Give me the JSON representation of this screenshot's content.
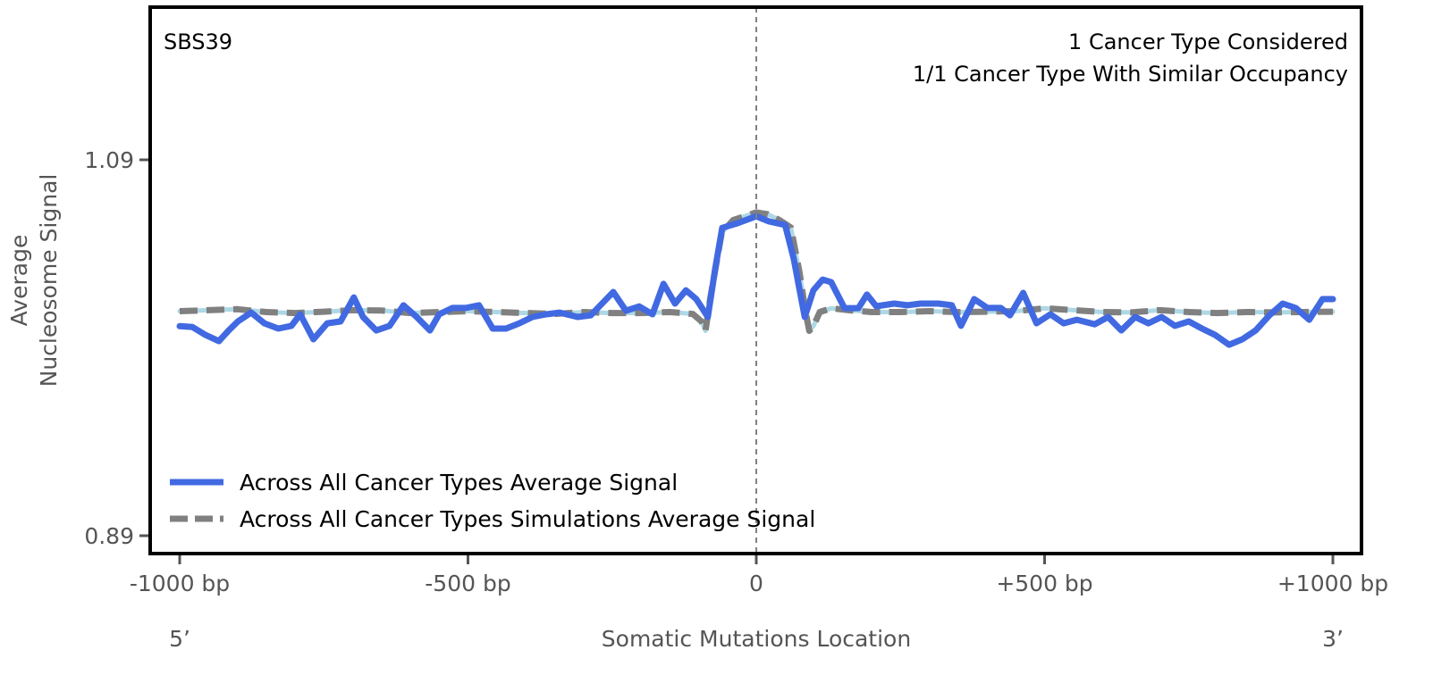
{
  "chart_data": {
    "type": "line",
    "signature_label": "SBS39",
    "annotations": [
      "1 Cancer Type Considered",
      "1/1 Cancer Type With Similar Occupancy"
    ],
    "xlabel": "Somatic Mutations Location",
    "ylabel_lines": [
      "Average",
      "Nucleosome Signal"
    ],
    "x_end_labels": {
      "left": "5’",
      "right": "3’"
    },
    "xlim": [
      -1000,
      1000
    ],
    "ylim": [
      0.875,
      1.17
    ],
    "xticks": [
      {
        "value": -1000,
        "label": "-1000 bp"
      },
      {
        "value": -500,
        "label": "-500 bp"
      },
      {
        "value": 0,
        "label": "0"
      },
      {
        "value": 500,
        "label": "+500 bp"
      },
      {
        "value": 1000,
        "label": "+1000 bp"
      }
    ],
    "yticks": [
      {
        "value": 1.09,
        "label": "1.09"
      },
      {
        "value": 0.89,
        "label": "0.89"
      }
    ],
    "center_line": {
      "x": 0,
      "color": "#808080",
      "style": "dashed"
    },
    "legend": {
      "placement": "lower-left",
      "entries": [
        {
          "label": "Across All Cancer Types Average Signal",
          "color": "#4169e1",
          "style": "solid"
        },
        {
          "label": "Across All Cancer Types Simulations Average Signal",
          "color": "#808080",
          "style": "dashed"
        }
      ]
    },
    "series": [
      {
        "name": "Across All Cancer Types Simulations Average Signal (individual)",
        "color": "#add8e6",
        "style": "solid",
        "x": [
          -1000,
          -950,
          -900,
          -850,
          -800,
          -750,
          -700,
          -650,
          -600,
          -550,
          -500,
          -450,
          -400,
          -350,
          -300,
          -250,
          -200,
          -150,
          -110,
          -95,
          -88,
          -80,
          -60,
          -40,
          -20,
          0,
          20,
          40,
          60,
          75,
          85,
          92,
          100,
          110,
          130,
          160,
          200,
          250,
          300,
          350,
          400,
          450,
          500,
          550,
          600,
          650,
          700,
          750,
          800,
          850,
          900,
          950,
          1000
        ],
        "y": [
          1.0095,
          1.01,
          1.0105,
          1.009,
          1.0085,
          1.0092,
          1.01,
          1.0098,
          1.0085,
          1.009,
          1.0095,
          1.009,
          1.0085,
          1.008,
          1.009,
          1.0085,
          1.0085,
          1.009,
          1.008,
          1.004,
          0.999,
          1.016,
          1.051,
          1.058,
          1.06,
          1.062,
          1.061,
          1.058,
          1.054,
          1.03,
          1.01,
          0.999,
          1.002,
          1.009,
          1.011,
          1.01,
          1.009,
          1.009,
          1.0095,
          1.009,
          1.0092,
          1.0095,
          1.011,
          1.01,
          1.009,
          1.0088,
          1.01,
          1.009,
          1.0085,
          1.009,
          1.0088,
          1.009,
          1.0092
        ]
      },
      {
        "name": "Across All Cancer Types Simulations Average Signal",
        "color": "#808080",
        "style": "dashed",
        "x": [
          -1000,
          -950,
          -900,
          -850,
          -800,
          -750,
          -700,
          -650,
          -600,
          -550,
          -500,
          -450,
          -400,
          -350,
          -300,
          -250,
          -200,
          -150,
          -110,
          -95,
          -88,
          -80,
          -60,
          -40,
          -20,
          0,
          20,
          40,
          60,
          75,
          85,
          92,
          100,
          110,
          130,
          160,
          200,
          250,
          300,
          350,
          400,
          450,
          500,
          550,
          600,
          650,
          700,
          750,
          800,
          850,
          900,
          950,
          1000
        ],
        "y": [
          1.0095,
          1.01,
          1.0105,
          1.009,
          1.0085,
          1.0092,
          1.01,
          1.0098,
          1.0085,
          1.009,
          1.0095,
          1.009,
          1.0085,
          1.008,
          1.009,
          1.0085,
          1.0085,
          1.009,
          1.008,
          1.004,
          0.999,
          1.016,
          1.051,
          1.058,
          1.06,
          1.062,
          1.061,
          1.058,
          1.054,
          1.03,
          1.01,
          0.999,
          1.002,
          1.009,
          1.011,
          1.01,
          1.009,
          1.009,
          1.0095,
          1.009,
          1.0092,
          1.0095,
          1.011,
          1.01,
          1.009,
          1.0088,
          1.01,
          1.009,
          1.0085,
          1.009,
          1.0088,
          1.009,
          1.0092
        ]
      },
      {
        "name": "Across All Cancer Types Average Signal",
        "color": "#4169e1",
        "style": "solid",
        "x": [
          -1000,
          -978,
          -955,
          -932,
          -915,
          -899,
          -876,
          -853,
          -829,
          -806,
          -791,
          -768,
          -744,
          -721,
          -698,
          -682,
          -659,
          -636,
          -612,
          -589,
          -566,
          -550,
          -527,
          -504,
          -481,
          -457,
          -434,
          -411,
          -388,
          -364,
          -341,
          -310,
          -287,
          -248,
          -226,
          -203,
          -180,
          -161,
          -141,
          -122,
          -104,
          -84,
          -71,
          -59,
          -33,
          0,
          22,
          50,
          65,
          84,
          99,
          115,
          130,
          153,
          177,
          192,
          208,
          239,
          262,
          285,
          316,
          339,
          355,
          378,
          401,
          424,
          440,
          463,
          486,
          510,
          533,
          556,
          587,
          610,
          633,
          657,
          680,
          703,
          726,
          750,
          773,
          796,
          820,
          843,
          866,
          890,
          913,
          936,
          959,
          982,
          1000
        ],
        "y": [
          1.0015,
          1.001,
          0.9968,
          0.9935,
          0.9992,
          1.004,
          1.0087,
          1.003,
          1.0002,
          1.0017,
          1.0078,
          0.9945,
          1.003,
          1.004,
          1.0168,
          1.0064,
          0.9992,
          1.0017,
          1.0126,
          1.0064,
          0.9992,
          1.0078,
          1.0112,
          1.0112,
          1.0126,
          1.0002,
          1.0002,
          1.003,
          1.0064,
          1.0078,
          1.0087,
          1.0064,
          1.0073,
          1.0197,
          1.0097,
          1.012,
          1.0078,
          1.024,
          1.0135,
          1.0206,
          1.0159,
          1.0064,
          1.0325,
          1.0538,
          1.0562,
          1.06,
          1.0572,
          1.0553,
          1.0373,
          1.0064,
          1.0206,
          1.0263,
          1.0249,
          1.0111,
          1.0111,
          1.0183,
          1.0121,
          1.0135,
          1.0126,
          1.0135,
          1.0135,
          1.0126,
          1.0017,
          1.0159,
          1.0112,
          1.0112,
          1.0073,
          1.0192,
          1.003,
          1.0078,
          1.003,
          1.0049,
          1.0025,
          1.0064,
          0.9992,
          1.0064,
          1.003,
          1.0064,
          1.0017,
          1.004,
          1.0002,
          0.9968,
          0.9916,
          0.9945,
          0.9992,
          1.0073,
          1.0135,
          1.0111,
          1.0049,
          1.0159,
          1.0159
        ]
      }
    ]
  }
}
